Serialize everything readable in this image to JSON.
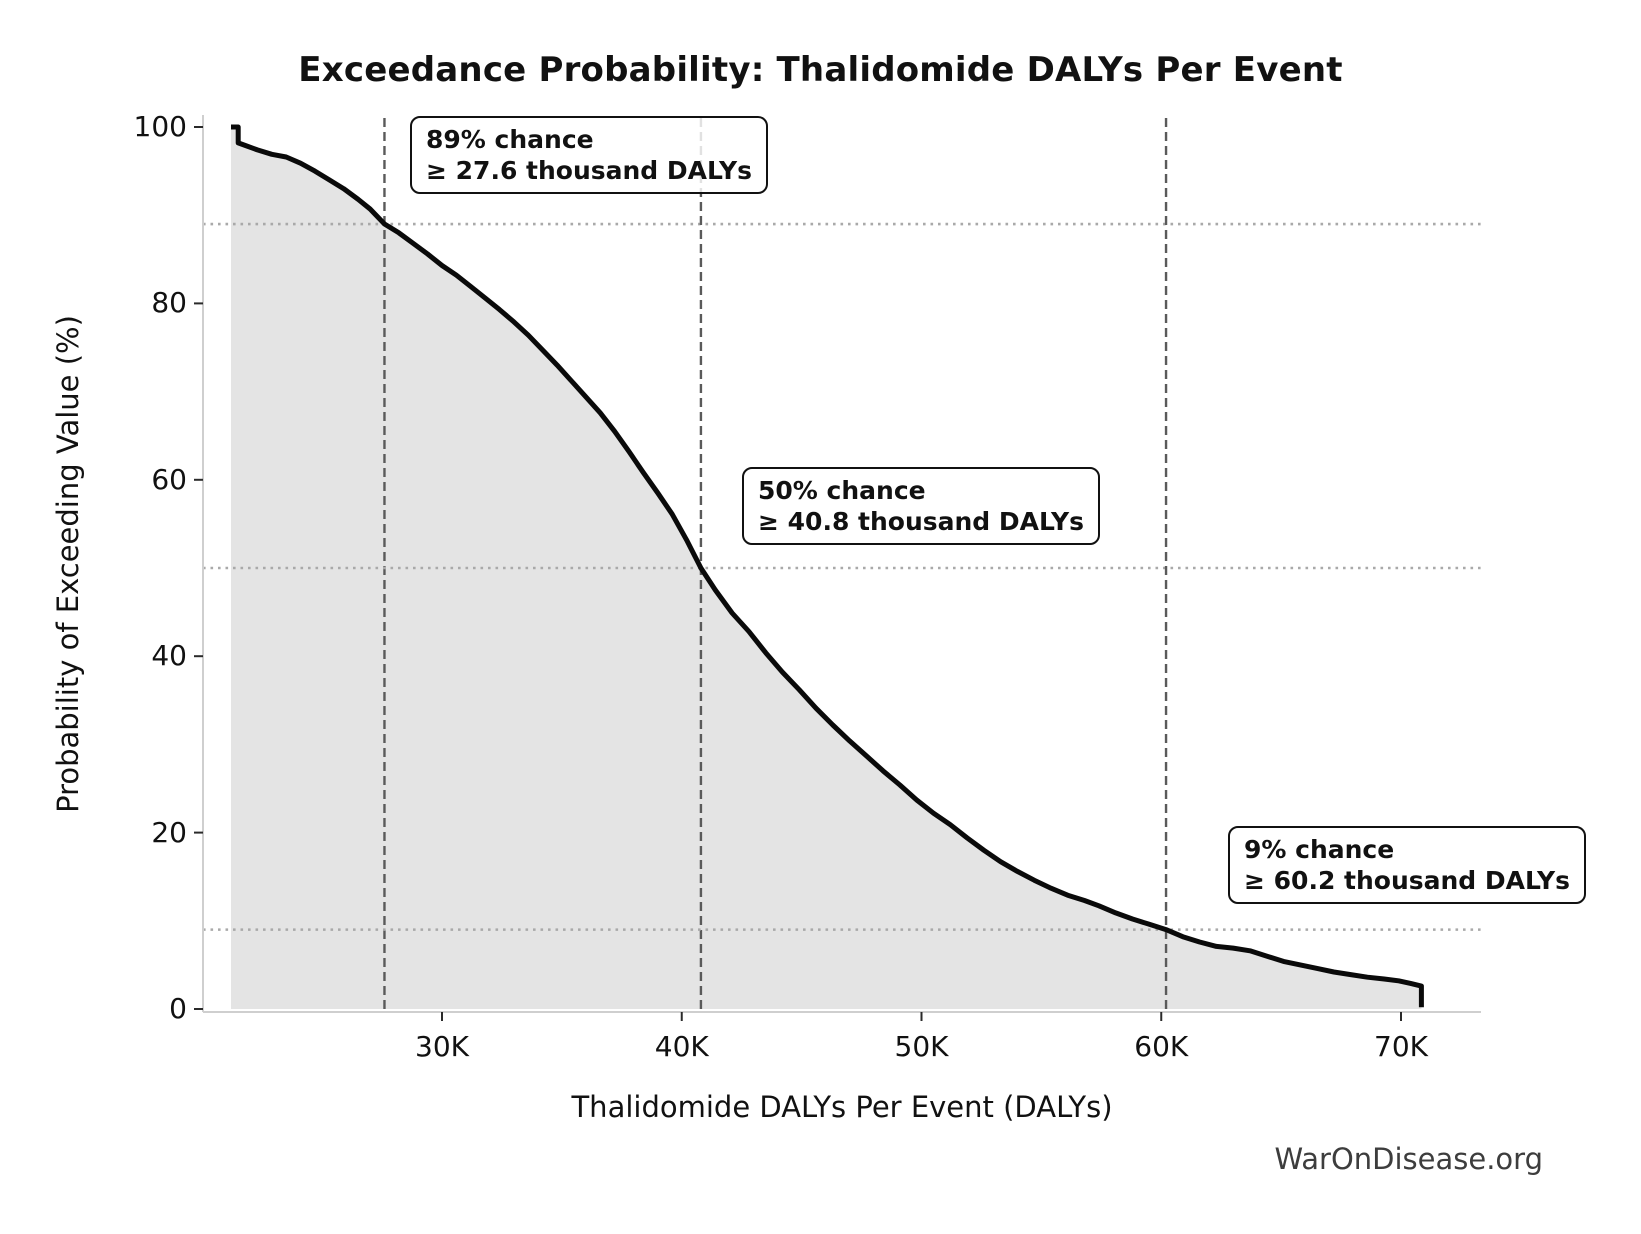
{
  "title": "Exceedance Probability: Thalidomide DALYs Per Event",
  "axes": {
    "xlabel": "Thalidomide DALYs Per Event (DALYs)",
    "ylabel": "Probability of Exceeding Value (%)"
  },
  "watermark": "WarOnDisease.org",
  "chart_data": {
    "type": "line",
    "title": "Exceedance Probability: Thalidomide DALYs Per Event",
    "xlabel": "Thalidomide DALYs Per Event (DALYs)",
    "ylabel": "Probability of Exceeding Value (%)",
    "x_unit": "thousand DALYs",
    "xlim_thousand_dalys": [
      20,
      73.3
    ],
    "ylim_percent": [
      0,
      100
    ],
    "grid": "dotted horizontal + dashed vertical reference lines only",
    "legend": "none",
    "x_ticks": [
      {
        "label": "30K",
        "value": 30
      },
      {
        "label": "40K",
        "value": 40
      },
      {
        "label": "50K",
        "value": 50
      },
      {
        "label": "60K",
        "value": 60
      },
      {
        "label": "70K",
        "value": 70
      }
    ],
    "y_ticks": [
      {
        "label": "0",
        "value": 0
      },
      {
        "label": "20",
        "value": 20
      },
      {
        "label": "40",
        "value": 40
      },
      {
        "label": "60",
        "value": 60
      },
      {
        "label": "80",
        "value": 80
      },
      {
        "label": "100",
        "value": 100
      }
    ],
    "reference_points": [
      {
        "line1": "89% chance",
        "line2": "≥ 27.6 thousand DALYs",
        "probability_pct": 89,
        "threshold_thousand_dalys": 27.6
      },
      {
        "line1": "50% chance",
        "line2": "≥ 40.8 thousand DALYs",
        "probability_pct": 50,
        "threshold_thousand_dalys": 40.8
      },
      {
        "line1": "9% chance",
        "line2": "≥ 60.2 thousand DALYs",
        "probability_pct": 9,
        "threshold_thousand_dalys": 60.2
      }
    ],
    "series": [
      {
        "name": "Exceedance probability curve",
        "points_x_thousand_dalys_y_percent": [
          [
            21.2,
            100
          ],
          [
            21.5,
            100
          ],
          [
            21.5,
            98.2
          ],
          [
            21.8,
            97.9
          ],
          [
            22.3,
            97.4
          ],
          [
            22.9,
            96.9
          ],
          [
            23.5,
            96.6
          ],
          [
            24.1,
            95.9
          ],
          [
            24.7,
            95.0
          ],
          [
            25.3,
            94.0
          ],
          [
            25.9,
            93.0
          ],
          [
            26.5,
            91.8
          ],
          [
            27.0,
            90.7
          ],
          [
            27.6,
            89.0
          ],
          [
            28.2,
            88.0
          ],
          [
            28.8,
            86.8
          ],
          [
            29.4,
            85.6
          ],
          [
            30.0,
            84.3
          ],
          [
            30.6,
            83.2
          ],
          [
            31.2,
            81.9
          ],
          [
            31.8,
            80.6
          ],
          [
            32.4,
            79.3
          ],
          [
            33.0,
            77.9
          ],
          [
            33.6,
            76.4
          ],
          [
            34.2,
            74.7
          ],
          [
            34.8,
            73.0
          ],
          [
            35.4,
            71.2
          ],
          [
            36.0,
            69.4
          ],
          [
            36.6,
            67.6
          ],
          [
            37.2,
            65.5
          ],
          [
            37.8,
            63.2
          ],
          [
            38.4,
            60.8
          ],
          [
            39.0,
            58.5
          ],
          [
            39.6,
            56.1
          ],
          [
            40.2,
            53.2
          ],
          [
            40.8,
            50.0
          ],
          [
            41.4,
            47.5
          ],
          [
            42.1,
            44.9
          ],
          [
            42.8,
            42.8
          ],
          [
            43.5,
            40.4
          ],
          [
            44.2,
            38.2
          ],
          [
            44.9,
            36.2
          ],
          [
            45.6,
            34.1
          ],
          [
            46.3,
            32.2
          ],
          [
            47.0,
            30.4
          ],
          [
            47.7,
            28.7
          ],
          [
            48.4,
            27.0
          ],
          [
            49.1,
            25.4
          ],
          [
            49.8,
            23.7
          ],
          [
            50.5,
            22.2
          ],
          [
            51.2,
            20.9
          ],
          [
            51.9,
            19.4
          ],
          [
            52.6,
            18.0
          ],
          [
            53.3,
            16.7
          ],
          [
            54.0,
            15.6
          ],
          [
            54.7,
            14.6
          ],
          [
            55.4,
            13.7
          ],
          [
            56.1,
            12.9
          ],
          [
            56.8,
            12.3
          ],
          [
            57.4,
            11.7
          ],
          [
            58.1,
            10.9
          ],
          [
            58.8,
            10.2
          ],
          [
            59.5,
            9.6
          ],
          [
            60.2,
            9.0
          ],
          [
            60.9,
            8.2
          ],
          [
            61.6,
            7.6
          ],
          [
            62.3,
            7.1
          ],
          [
            63.0,
            6.9
          ],
          [
            63.7,
            6.6
          ],
          [
            64.4,
            6.0
          ],
          [
            65.1,
            5.4
          ],
          [
            65.8,
            5.0
          ],
          [
            66.5,
            4.6
          ],
          [
            67.2,
            4.2
          ],
          [
            67.9,
            3.9
          ],
          [
            68.6,
            3.6
          ],
          [
            69.3,
            3.4
          ],
          [
            69.9,
            3.2
          ],
          [
            70.4,
            2.9
          ],
          [
            70.85,
            2.6
          ],
          [
            70.85,
            0.2
          ]
        ]
      }
    ],
    "colors": {
      "curve": "#0a0a0a",
      "area_fill": "#e4e4e4",
      "dashed_vline": "#5a5a5a",
      "dotted_hline": "#a9a9a9",
      "spine": "#cfcfcf",
      "tick_mark": "#2a2a2a",
      "watermark": "#3d3d3d"
    }
  }
}
